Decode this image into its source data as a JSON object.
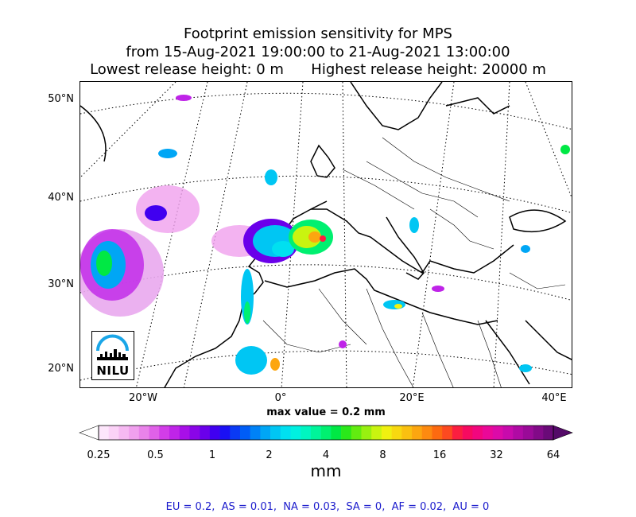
{
  "title": {
    "line1": "Footprint emission sensitivity for MPS",
    "line2": "from 15-Aug-2021 19:00:00 to 21-Aug-2021 13:00:00",
    "line3": "Lowest release height: 0 m      Highest release height: 20000 m"
  },
  "axes": {
    "lat_labels": [
      "50°N",
      "40°N",
      "30°N",
      "20°N"
    ],
    "lon_labels": [
      "20°W",
      "0°",
      "20°E",
      "40°E"
    ]
  },
  "max_value": "max value = 0.2 mm",
  "colorbar": {
    "ticks": [
      "0.25",
      "0.5",
      "1",
      "2",
      "4",
      "8",
      "16",
      "32",
      "64"
    ],
    "unit": "mm",
    "colors": [
      "#ffffff",
      "#fde6fb",
      "#fbd2f7",
      "#f6b9f2",
      "#f0a0ee",
      "#e983ea",
      "#e061e8",
      "#d23de8",
      "#bf24e8",
      "#a80fe8",
      "#8a05e8",
      "#6a00ea",
      "#4000f0",
      "#1a10f5",
      "#0a3af5",
      "#005df7",
      "#0082f7",
      "#00a6f5",
      "#00c6f3",
      "#00e0f0",
      "#00f0e0",
      "#00f5c0",
      "#00f59a",
      "#00f070",
      "#00e844",
      "#2ae81a",
      "#62ec10",
      "#98f010",
      "#c9f410",
      "#f0f010",
      "#f8d810",
      "#fac010",
      "#fca610",
      "#fd8a10",
      "#fd6a10",
      "#fd4a20",
      "#fb1e40",
      "#f70a60",
      "#f2067e",
      "#ea0898",
      "#dc0aa8",
      "#c80aac",
      "#b00aa4",
      "#9a0a98",
      "#820a88",
      "#6a0a78",
      "#540a68"
    ]
  },
  "logo": {
    "text": "NILU"
  },
  "region_summary": "EU = 0.2,  AS = 0.01,  NA = 0.03,  SA = 0,  AF = 0.02,  AU = 0"
}
